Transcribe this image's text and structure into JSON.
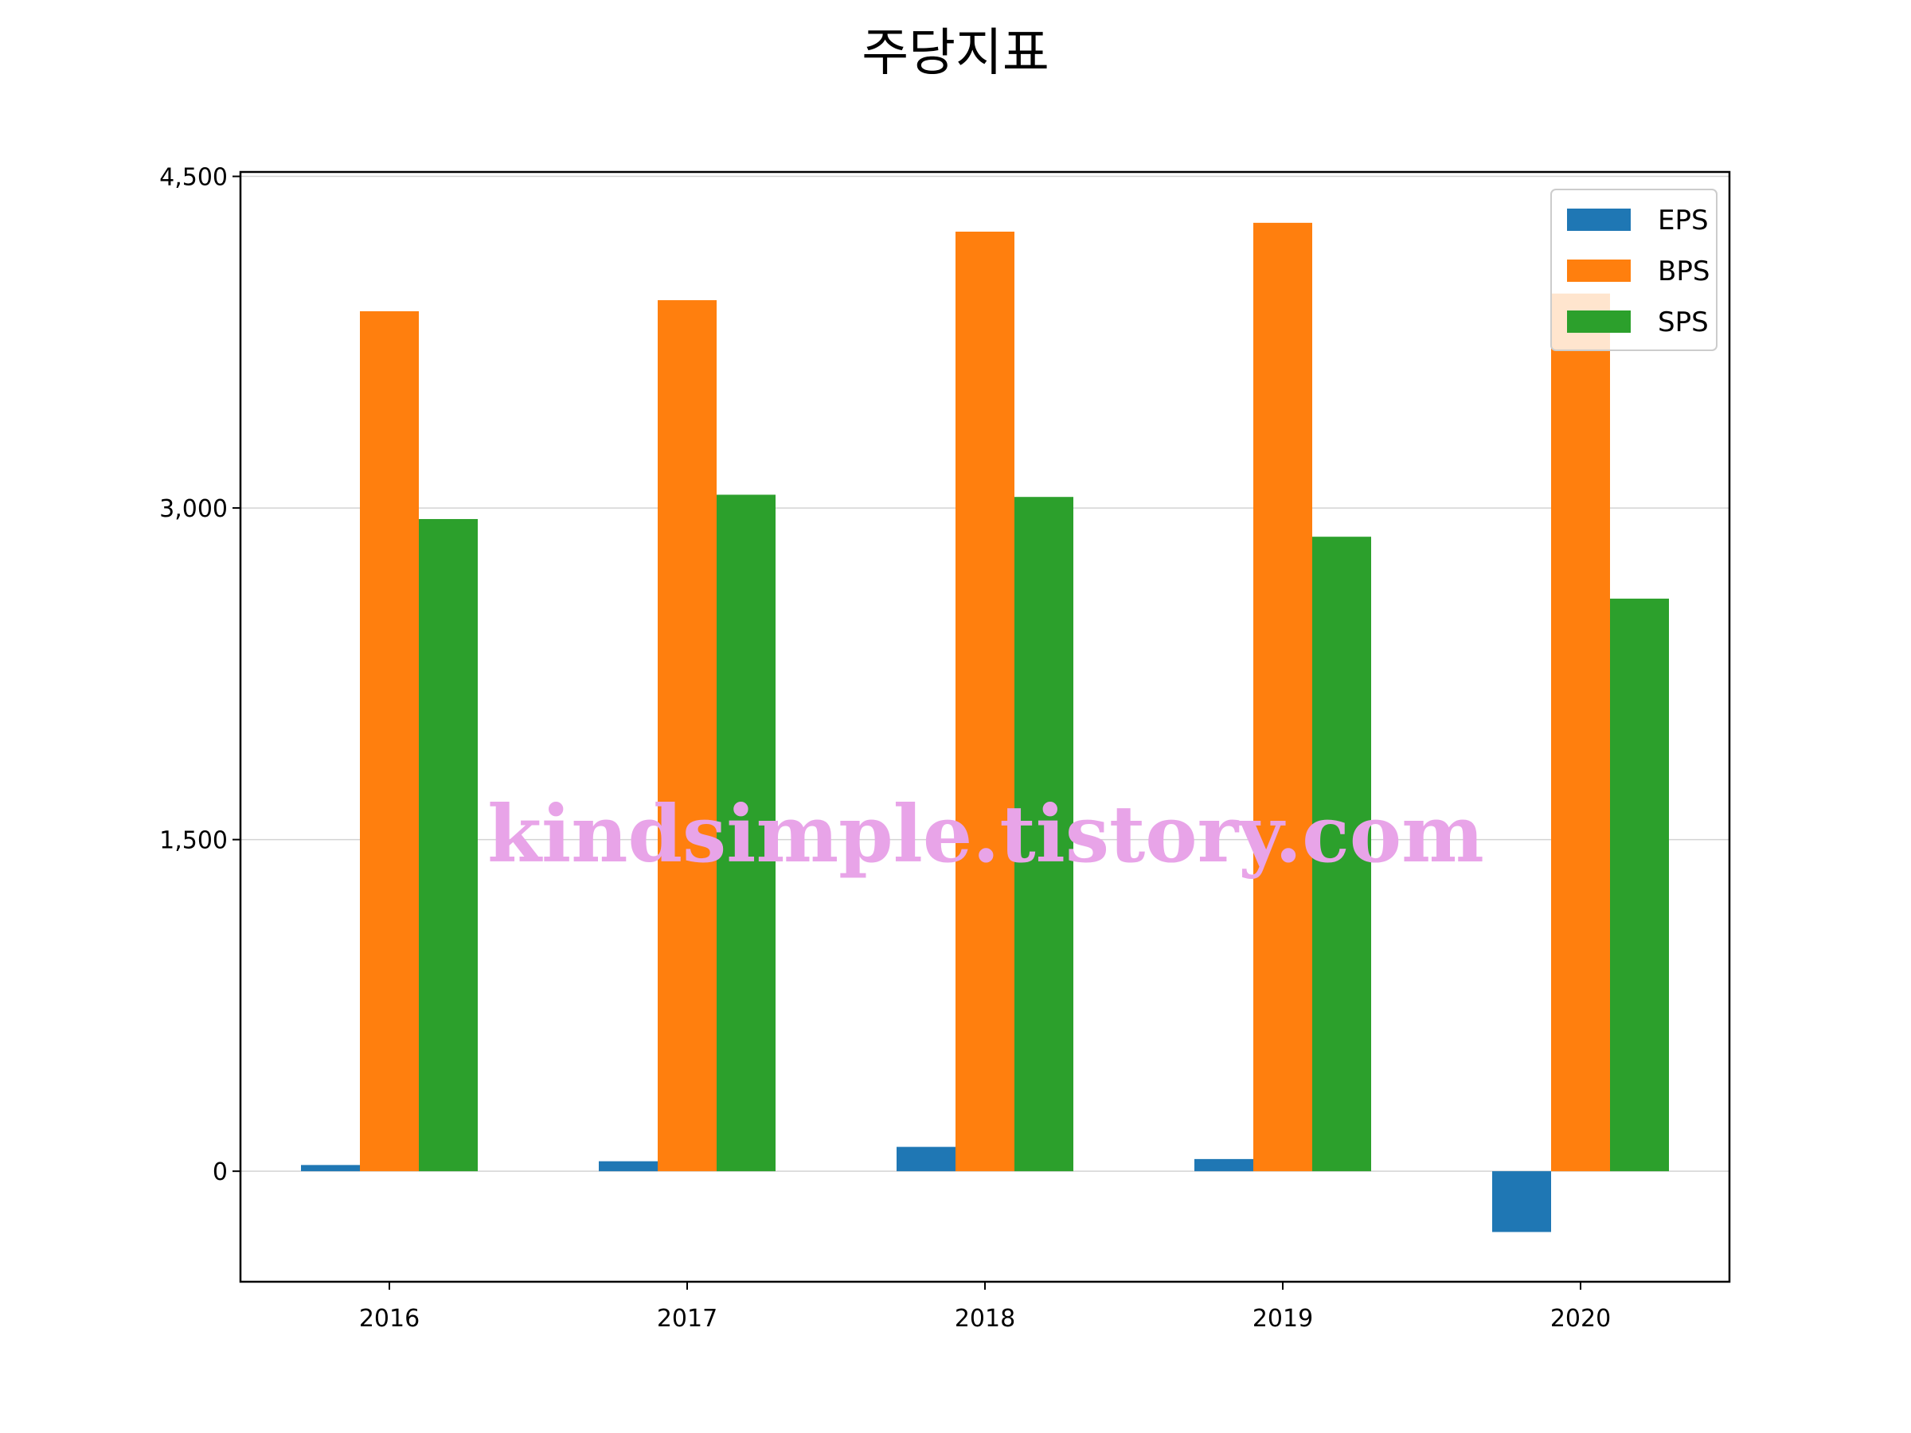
{
  "chart_data": {
    "type": "bar",
    "title": "주당지표",
    "xlabel": "",
    "ylabel": "",
    "categories": [
      "2016",
      "2017",
      "2018",
      "2019",
      "2020"
    ],
    "series": [
      {
        "name": "EPS",
        "color": "#1f77b4",
        "values": [
          28,
          45,
          110,
          55,
          -275
        ]
      },
      {
        "name": "BPS",
        "color": "#ff7f0e",
        "values": [
          3890,
          3940,
          4250,
          4290,
          3970
        ]
      },
      {
        "name": "SPS",
        "color": "#2ca02c",
        "values": [
          2950,
          3060,
          3050,
          2870,
          2590
        ]
      }
    ],
    "ylim": [
      -500,
      4520
    ],
    "yticks": [
      0,
      1500,
      3000,
      4500
    ],
    "ytick_labels": [
      "0",
      "1,500",
      "3,000",
      "4,500"
    ],
    "grid": true,
    "legend_position": "top-right"
  },
  "watermark": "kindsimple.tistory.com"
}
